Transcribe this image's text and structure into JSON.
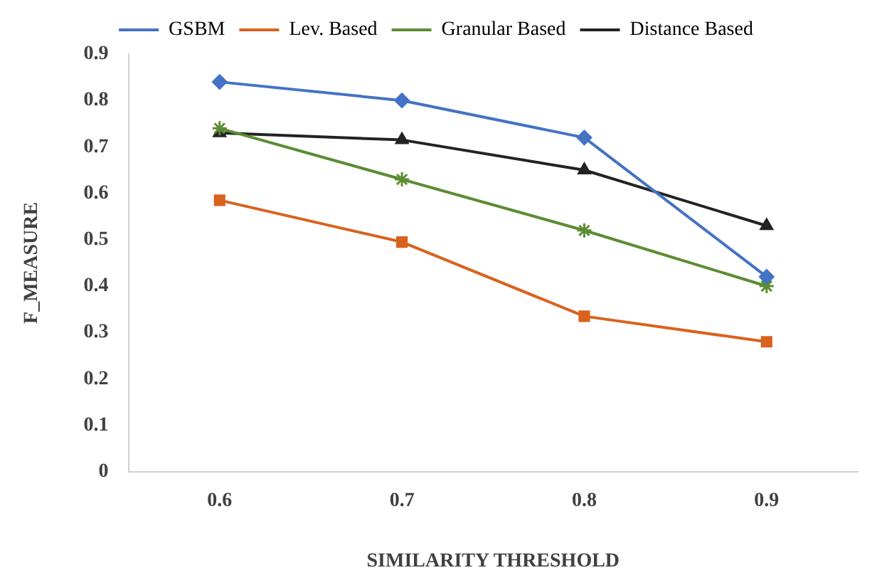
{
  "chart_data": {
    "type": "line",
    "xlabel": "SIMILARITY THRESHOLD",
    "ylabel": "F_MEASURE",
    "categories": [
      "0.6",
      "0.7",
      "0.8",
      "0.9"
    ],
    "ylim": [
      0,
      0.9
    ],
    "yticks": [
      0,
      0.1,
      0.2,
      0.3,
      0.4,
      0.5,
      0.6,
      0.7,
      0.8,
      0.9
    ],
    "grid": false,
    "legend": "top",
    "line_style": "solid",
    "series": [
      {
        "name": "GSBM",
        "color": "#4472c4",
        "marker": "diamond",
        "values": [
          0.84,
          0.8,
          0.72,
          0.42
        ]
      },
      {
        "name": "Lev. Based",
        "color": "#d9621e",
        "marker": "square",
        "values": [
          0.585,
          0.495,
          0.335,
          0.28
        ]
      },
      {
        "name": "Granular Based",
        "color": "#5b8c32",
        "marker": "cross",
        "values": [
          0.74,
          0.63,
          0.52,
          0.4
        ]
      },
      {
        "name": "Distance Based",
        "color": "#222222",
        "marker": "triangle",
        "values": [
          0.73,
          0.715,
          0.65,
          0.53
        ]
      }
    ]
  }
}
